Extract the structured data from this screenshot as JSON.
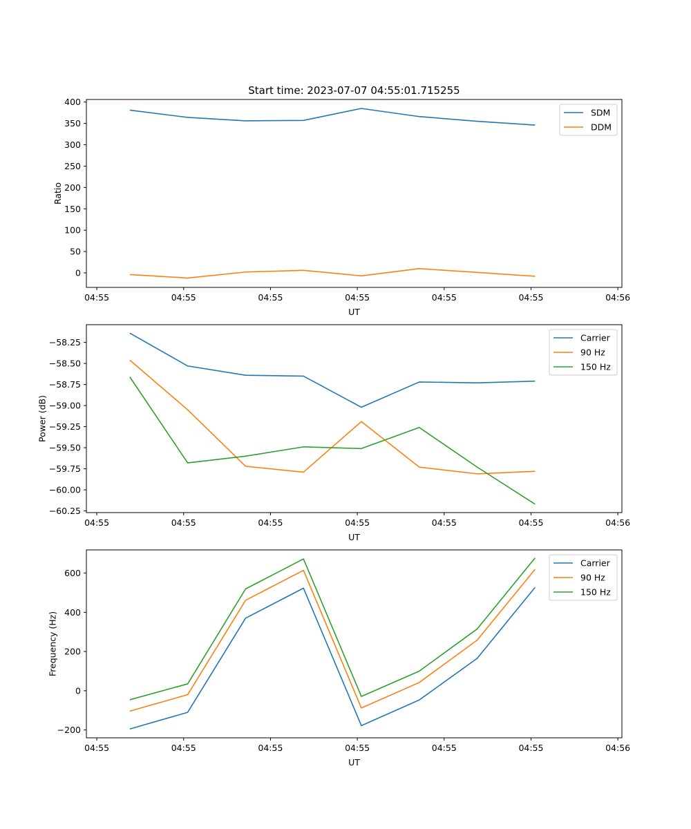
{
  "figure": {
    "title": "Start time: 2023-07-07 04:55:01.715255"
  },
  "colors": {
    "blue": "#1f77b4",
    "orange": "#ff7f0e",
    "green": "#2ca02c"
  },
  "chart_data": [
    {
      "type": "line",
      "ylabel": "Ratio",
      "xlabel": "UT",
      "x": [
        1,
        2,
        3,
        4,
        5,
        6,
        7,
        8
      ],
      "xlim": [
        0.25,
        9.5
      ],
      "xtick_positions": [
        0.43,
        1.93,
        3.43,
        4.93,
        6.43,
        7.93,
        9.43
      ],
      "xtick_labels": [
        "04:55",
        "04:55",
        "04:55",
        "04:55",
        "04:55",
        "04:55",
        "04:56"
      ],
      "ylim": [
        -34,
        406
      ],
      "yticks": [
        0,
        50,
        100,
        150,
        200,
        250,
        300,
        350,
        400
      ],
      "ytick_labels": [
        "0",
        "50",
        "100",
        "150",
        "200",
        "250",
        "300",
        "350",
        "400"
      ],
      "legend": "top-right",
      "series": [
        {
          "name": "SDM",
          "color": "#1f77b4",
          "values": [
            381,
            364,
            356,
            357,
            385,
            366,
            355,
            346
          ]
        },
        {
          "name": "DDM",
          "color": "#ff7f0e",
          "values": [
            -4,
            -12,
            2,
            6,
            -7,
            10,
            1,
            -8
          ]
        }
      ]
    },
    {
      "type": "line",
      "ylabel": "Power (dB)",
      "xlabel": "UT",
      "x": [
        1,
        2,
        3,
        4,
        5,
        6,
        7,
        8
      ],
      "xlim": [
        0.25,
        9.5
      ],
      "xtick_positions": [
        0.43,
        1.93,
        3.43,
        4.93,
        6.43,
        7.93,
        9.43
      ],
      "xtick_labels": [
        "04:55",
        "04:55",
        "04:55",
        "04:55",
        "04:55",
        "04:55",
        "04:56"
      ],
      "ylim": [
        -60.27,
        -58.04
      ],
      "yticks": [
        -60.25,
        -60.0,
        -59.75,
        -59.5,
        -59.25,
        -59.0,
        -58.75,
        -58.5,
        -58.25
      ],
      "ytick_labels": [
        "−60.25",
        "−60.00",
        "−59.75",
        "−59.50",
        "−59.25",
        "−59.00",
        "−58.75",
        "−58.50",
        "−58.25"
      ],
      "legend": "top-right",
      "series": [
        {
          "name": "Carrier",
          "color": "#1f77b4",
          "values": [
            -58.14,
            -58.53,
            -58.64,
            -58.65,
            -59.02,
            -58.72,
            -58.73,
            -58.71
          ]
        },
        {
          "name": "90 Hz",
          "color": "#ff7f0e",
          "values": [
            -58.46,
            -59.05,
            -59.72,
            -59.79,
            -59.19,
            -59.73,
            -59.81,
            -59.78
          ]
        },
        {
          "name": "150 Hz",
          "color": "#2ca02c",
          "values": [
            -58.66,
            -59.68,
            -59.6,
            -59.49,
            -59.51,
            -59.26,
            -59.73,
            -60.17
          ]
        }
      ]
    },
    {
      "type": "line",
      "ylabel": "Frequency (Hz)",
      "xlabel": "UT",
      "x": [
        1,
        2,
        3,
        4,
        5,
        6,
        7,
        8
      ],
      "xlim": [
        0.25,
        9.5
      ],
      "xtick_positions": [
        0.43,
        1.93,
        3.43,
        4.93,
        6.43,
        7.93,
        9.43
      ],
      "xtick_labels": [
        "04:55",
        "04:55",
        "04:55",
        "04:55",
        "04:55",
        "04:55",
        "04:56"
      ],
      "ylim": [
        -240,
        718
      ],
      "yticks": [
        -200,
        0,
        200,
        400,
        600
      ],
      "ytick_labels": [
        "−200",
        "0",
        "200",
        "400",
        "600"
      ],
      "legend": "top-right",
      "series": [
        {
          "name": "Carrier",
          "color": "#1f77b4",
          "values": [
            -195,
            -110,
            370,
            523,
            -178,
            -47,
            165,
            527
          ]
        },
        {
          "name": "90 Hz",
          "color": "#ff7f0e",
          "values": [
            -104,
            -20,
            461,
            614,
            -88,
            42,
            258,
            619
          ]
        },
        {
          "name": "150 Hz",
          "color": "#2ca02c",
          "values": [
            -46,
            35,
            519,
            672,
            -29,
            100,
            315,
            677
          ]
        }
      ]
    }
  ]
}
